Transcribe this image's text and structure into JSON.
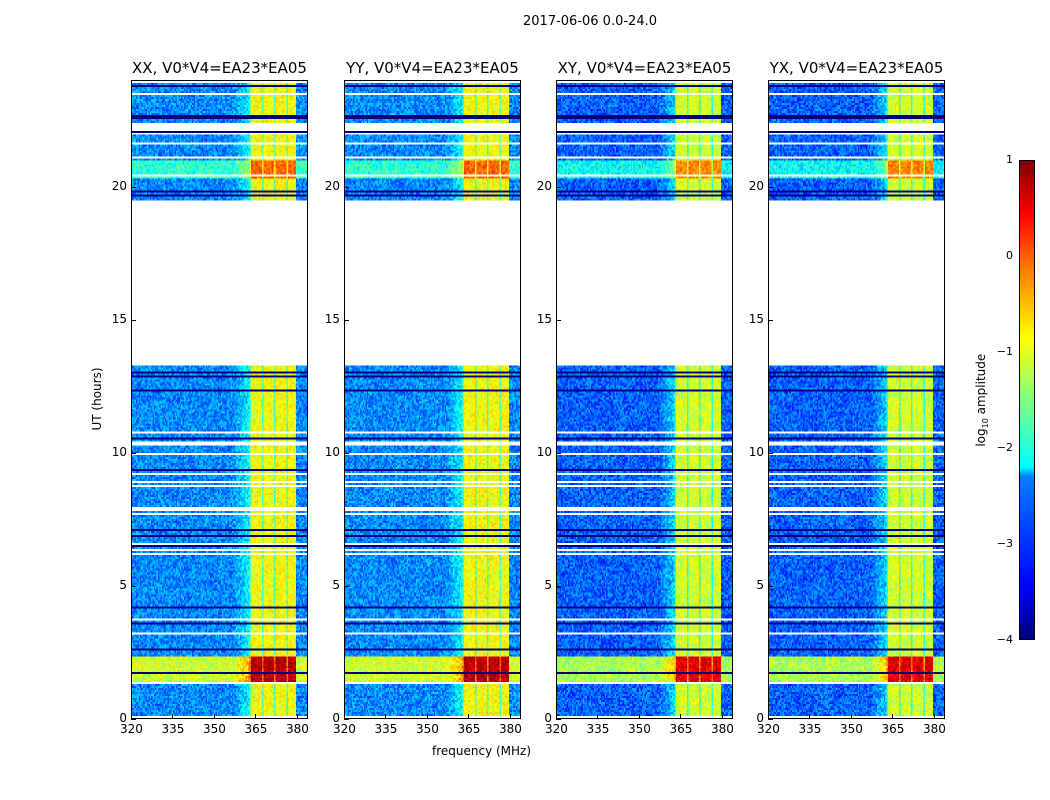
{
  "chart_data": {
    "type": "heatmap",
    "title": "2017-06-06 0.0-24.0",
    "xlabel": "frequency (MHz)",
    "ylabel": "UT (hours)",
    "xlim": [
      320,
      384
    ],
    "ylim": [
      0,
      24
    ],
    "xticks": [
      "320",
      "335",
      "350",
      "365",
      "380"
    ],
    "xtick_values": [
      320,
      335,
      350,
      365,
      380
    ],
    "yticks": [
      "0",
      "5",
      "10",
      "15",
      "20"
    ],
    "ytick_values": [
      0,
      5,
      10,
      15,
      20
    ],
    "panels": [
      {
        "title": "XX, V0*V4=EA23*EA05"
      },
      {
        "title": "YY, V0*V4=EA23*EA05"
      },
      {
        "title": "XY, V0*V4=EA23*EA05"
      },
      {
        "title": "YX, V0*V4=EA23*EA05"
      }
    ],
    "data_gap_hours": [
      13.3,
      19.5
    ],
    "strong_band_mhz": [
      363,
      380
    ],
    "colorbar": {
      "label": "log10 amplitude",
      "label_main": "log",
      "label_sub": "10",
      "label_rest": " amplitude",
      "range": [
        -4,
        1
      ],
      "ticks": [
        "1",
        "0",
        "−1",
        "−2",
        "−3",
        "−4"
      ],
      "tick_values": [
        1,
        0,
        -1,
        -2,
        -3,
        -4
      ],
      "colormap": "jet"
    }
  }
}
